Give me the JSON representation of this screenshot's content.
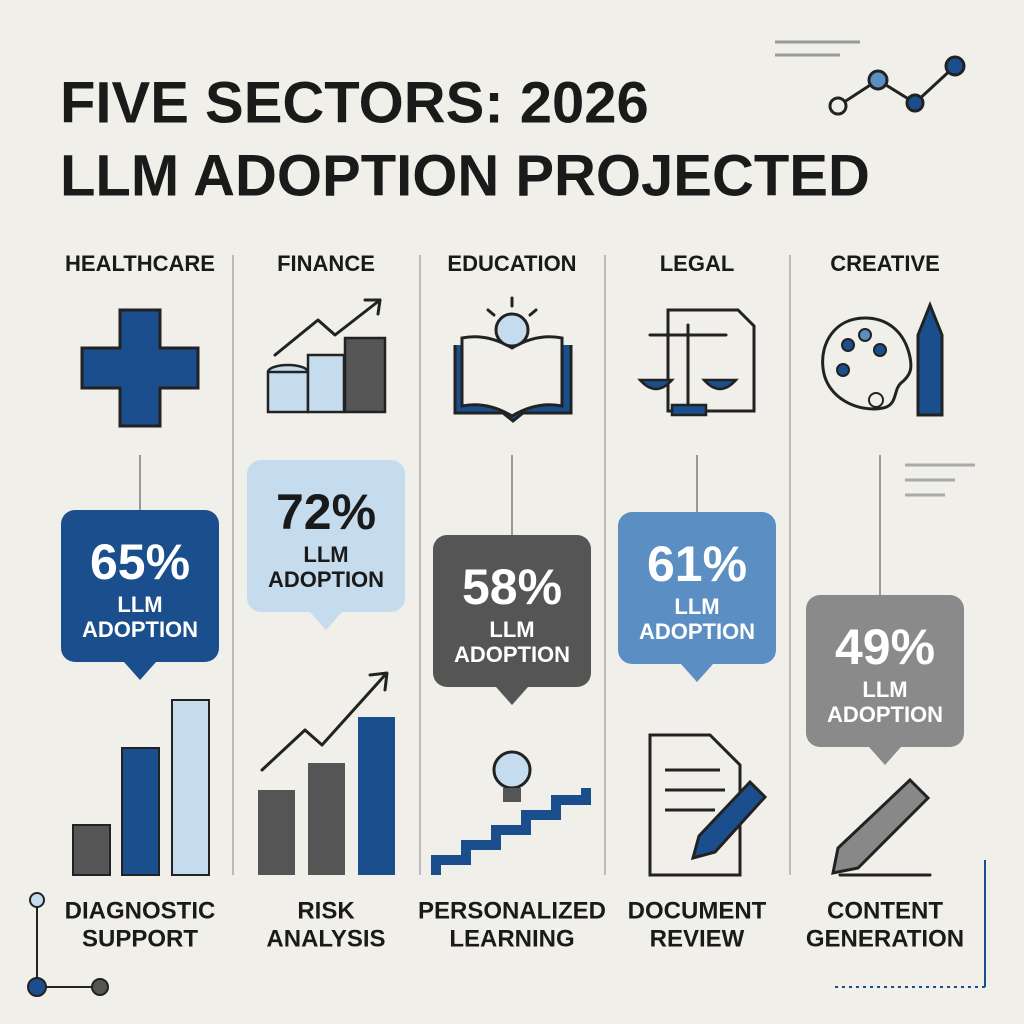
{
  "title": [
    "FIVE SECTORS: 2026",
    "LLM ADOPTION PROJECTED"
  ],
  "sectors": [
    {
      "name": "HEALTHCARE",
      "percent": "65%",
      "metric": [
        "LLM",
        "ADOPTION"
      ],
      "use_case": [
        "DIAGNOSTIC",
        "SUPPORT"
      ]
    },
    {
      "name": "FINANCE",
      "percent": "72%",
      "metric": [
        "LLM",
        "ADOPTION"
      ],
      "use_case": [
        "RISK",
        "ANALYSIS"
      ]
    },
    {
      "name": "EDUCATION",
      "percent": "58%",
      "metric": [
        "LLM",
        "ADOPTION"
      ],
      "use_case": [
        "PERSONALIZED",
        "LEARNING"
      ]
    },
    {
      "name": "LEGAL",
      "percent": "61%",
      "metric": [
        "LLM",
        "ADOPTION"
      ],
      "use_case": [
        "DOCUMENT",
        "REVIEW"
      ]
    },
    {
      "name": "CREATIVE",
      "percent": "49%",
      "metric": [
        "LLM",
        "ADOPTION"
      ],
      "use_case": [
        "CONTENT",
        "GENERATION"
      ]
    }
  ]
}
